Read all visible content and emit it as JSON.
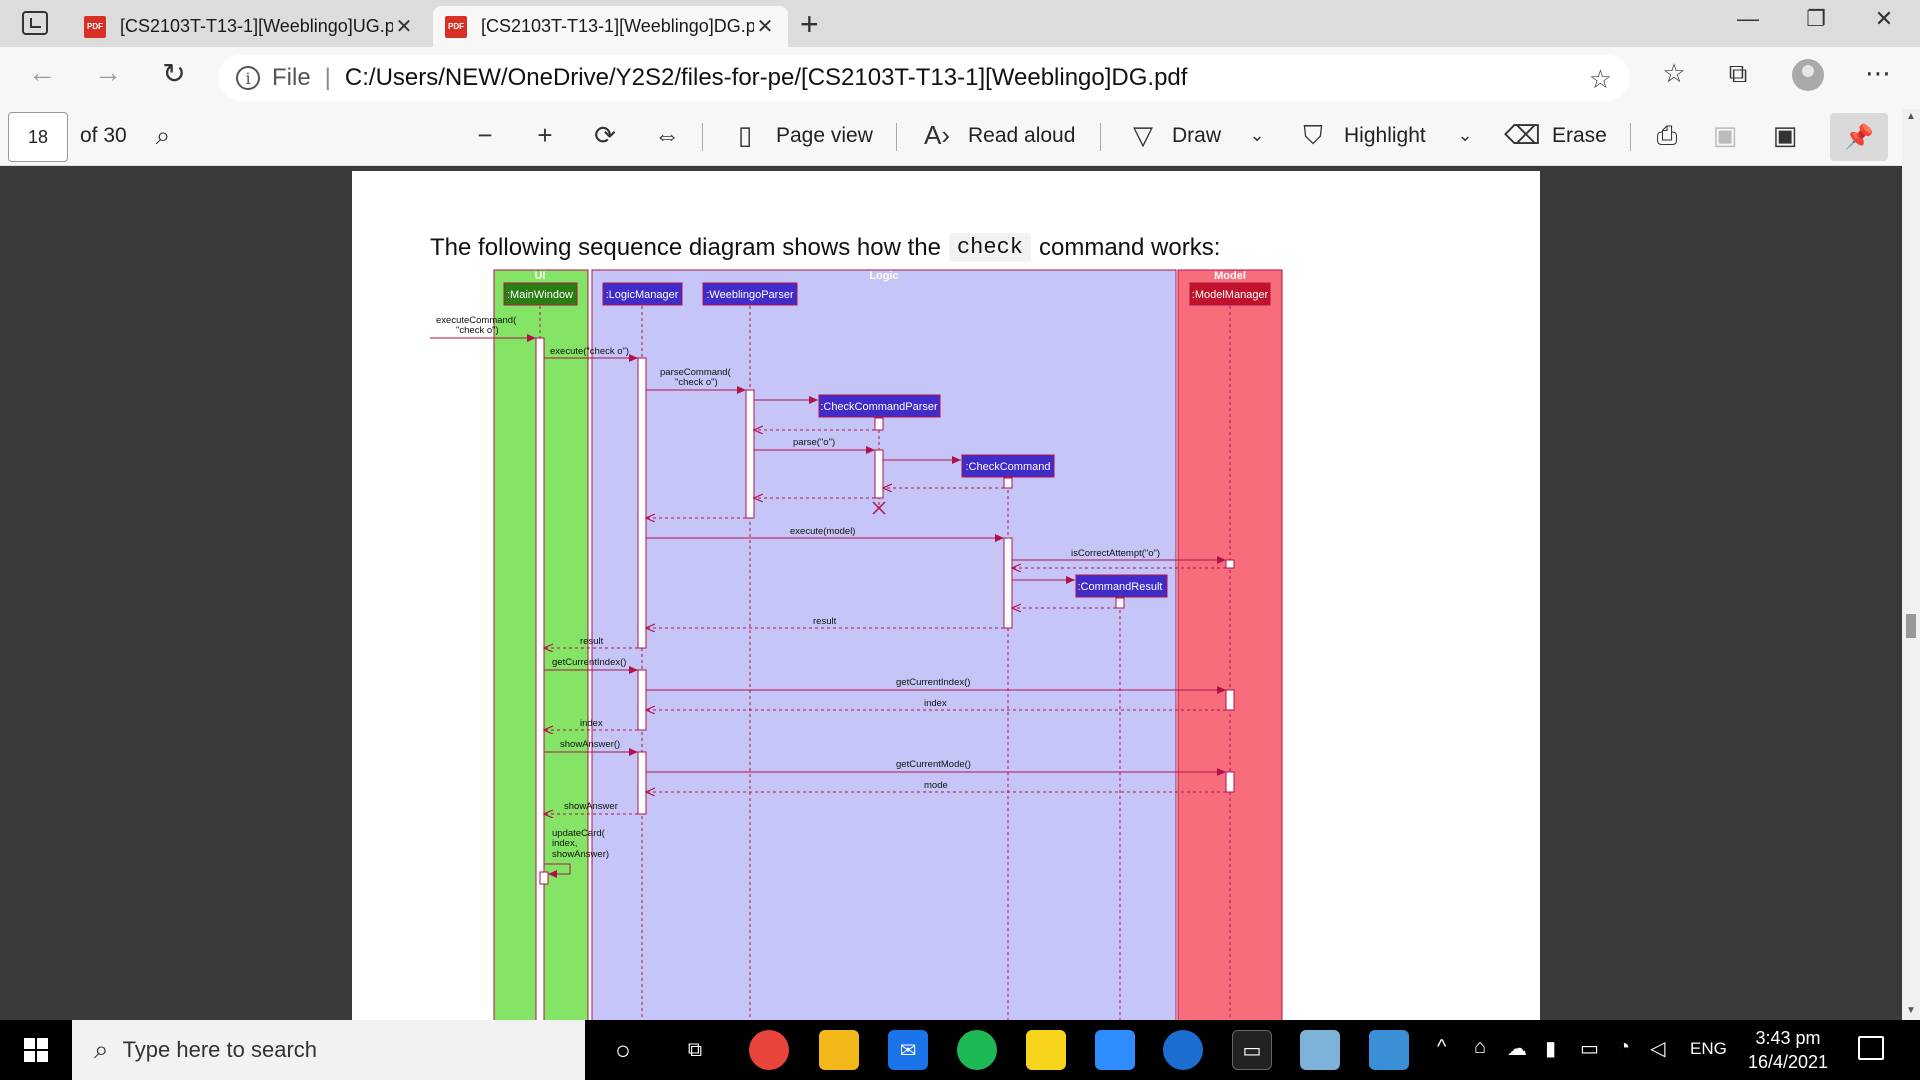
{
  "browser": {
    "tabs": [
      {
        "label": "[CS2103T-T13-1][Weeblingo]UG.pdf",
        "active": false
      },
      {
        "label": "[CS2103T-T13-1][Weeblingo]DG.pdf",
        "active": true
      }
    ],
    "address": {
      "scheme": "File",
      "separator": "|",
      "url": "C:/Users/NEW/OneDrive/Y2S2/files-for-pe/[CS2103T-T13-1][Weeblingo]DG.pdf"
    }
  },
  "pdf_toolbar": {
    "page_number": "18",
    "page_total": "of 30",
    "page_view_label": "Page view",
    "read_aloud_label": "Read aloud",
    "draw_label": "Draw",
    "highlight_label": "Highlight",
    "erase_label": "Erase"
  },
  "document": {
    "caption_before": "The following sequence diagram shows how the",
    "caption_code": "check",
    "caption_after": "command works:"
  },
  "diagram": {
    "boxes": [
      {
        "label": "UI",
        "color": "#84e465"
      },
      {
        "label": "Logic",
        "color": "#c6c5f7"
      },
      {
        "label": "Model",
        "color": "#f76d7c"
      }
    ],
    "participants": [
      {
        "label": ":MainWindow",
        "color": "#2a7d15"
      },
      {
        "label": ":LogicManager",
        "color": "#3f2cc9"
      },
      {
        "label": ":WeeblingoParser",
        "color": "#3f2cc9"
      },
      {
        "label": ":CheckCommandParser",
        "color": "#3f2cc9"
      },
      {
        "label": ":CheckCommand",
        "color": "#3f2cc9"
      },
      {
        "label": ":CommandResult",
        "color": "#3f2cc9"
      },
      {
        "label": ":ModelManager",
        "color": "#c0132b"
      }
    ],
    "messages": [
      {
        "l1": "executeCommand(",
        "l2": "\"check o\")"
      },
      {
        "l1": "execute(\"check o\")"
      },
      {
        "l1": "parseCommand(",
        "l2": "\"check o\")"
      },
      {
        "l1": "parse(\"o\")"
      },
      {
        "l1": "execute(model)"
      },
      {
        "l1": "isCorrectAttempt(\"o\")"
      },
      {
        "l1": "result"
      },
      {
        "l1": "result"
      },
      {
        "l1": "getCurrentIndex()"
      },
      {
        "l1": "getCurrentIndex()"
      },
      {
        "l1": "index"
      },
      {
        "l1": "index"
      },
      {
        "l1": "showAnswer()"
      },
      {
        "l1": "getCurrentMode()"
      },
      {
        "l1": "mode"
      },
      {
        "l1": "showAnswer"
      },
      {
        "l1": "updateCard(",
        "l2": "index,",
        "l3": "showAnswer)"
      }
    ],
    "arrow_color": "#b0124a"
  },
  "taskbar": {
    "search_placeholder": "Type here to search",
    "language": "ENG",
    "time": "3:43 pm",
    "date": "16/4/2021"
  }
}
